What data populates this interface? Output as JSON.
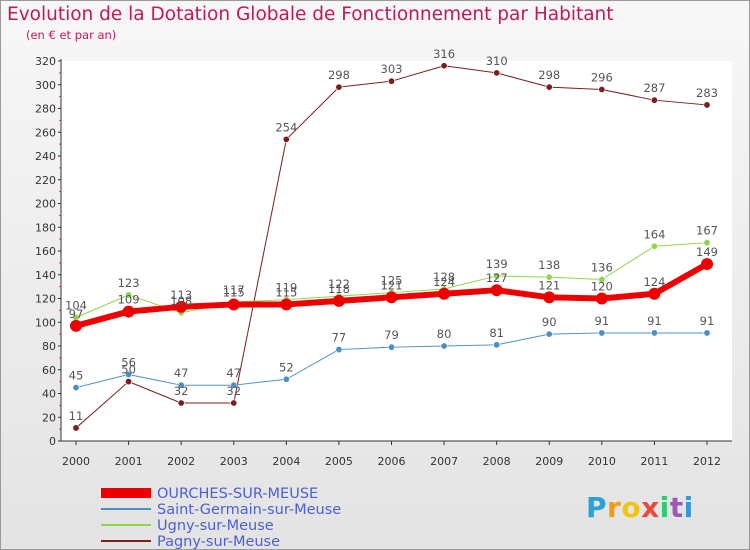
{
  "title": "Evolution de la Dotation Globale de Fonctionnement par Habitant",
  "subtitle": "(en € et par an)",
  "logo": {
    "letters": [
      "P",
      "r",
      "o",
      "x",
      "i",
      "t",
      "i"
    ],
    "colors": [
      "#29a3d6",
      "#f39c12",
      "#f1c40f",
      "#e74c3c",
      "#2ecc71",
      "#9b59b6",
      "#3498db"
    ]
  },
  "chart_data": {
    "type": "line",
    "title": "Evolution de la Dotation Globale de Fonctionnement par Habitant",
    "subtitle": "(en € et par an)",
    "xlabel": "",
    "ylabel": "",
    "x": [
      2000,
      2001,
      2002,
      2003,
      2004,
      2005,
      2006,
      2007,
      2008,
      2009,
      2010,
      2011,
      2012
    ],
    "ylim": [
      0,
      320
    ],
    "yticks": [
      0,
      20,
      40,
      60,
      80,
      100,
      120,
      140,
      160,
      180,
      200,
      220,
      240,
      260,
      280,
      300,
      320
    ],
    "grid": false,
    "legend_position": "bottom-left",
    "series": [
      {
        "name": "Pagny-sur-Meuse",
        "color": "#7a1f1f",
        "width": 1,
        "values": [
          11,
          50,
          32,
          32,
          254,
          298,
          303,
          316,
          310,
          298,
          296,
          287,
          283
        ],
        "labels": [
          "11",
          "50",
          "32",
          "32",
          "254",
          "298",
          "303",
          "316",
          "310",
          "298",
          "296",
          "287",
          "283"
        ]
      },
      {
        "name": "Saint-Germain-sur-Meuse",
        "color": "#4b8fc8",
        "width": 1,
        "values": [
          45,
          56,
          47,
          47,
          52,
          77,
          79,
          80,
          81,
          90,
          91,
          91,
          91
        ],
        "labels": [
          "45",
          "56",
          "47",
          "47",
          "52",
          "77",
          "79",
          "80",
          "81",
          "90",
          "91",
          "91",
          "91"
        ]
      },
      {
        "name": "Ugny-sur-Meuse",
        "color": "#8ed64a",
        "width": 1,
        "values": [
          104,
          123,
          108,
          117,
          119,
          122,
          125,
          128,
          139,
          138,
          136,
          164,
          167
        ],
        "labels": [
          "104",
          "123",
          "108",
          "117",
          "119",
          "122",
          "125",
          "128",
          "139",
          "138",
          "136",
          "164",
          "167"
        ]
      },
      {
        "name": "OURCHES-SUR-MEUSE",
        "color": "#ee0000",
        "width": 6,
        "values": [
          97,
          109,
          113,
          115,
          115,
          118,
          121,
          124,
          127,
          121,
          120,
          124,
          149
        ],
        "labels": [
          "97",
          "109",
          "113",
          "115",
          "115",
          "118",
          "121",
          "124",
          "127",
          "121",
          "120",
          "124",
          "149"
        ]
      }
    ],
    "legend": [
      {
        "name": "OURCHES-SUR-MEUSE",
        "color": "#ee0000",
        "thick": true
      },
      {
        "name": "Saint-Germain-sur-Meuse",
        "color": "#4b8fc8",
        "thick": false
      },
      {
        "name": "Ugny-sur-Meuse",
        "color": "#8ed64a",
        "thick": false
      },
      {
        "name": "Pagny-sur-Meuse",
        "color": "#7a1f1f",
        "thick": false
      }
    ]
  }
}
